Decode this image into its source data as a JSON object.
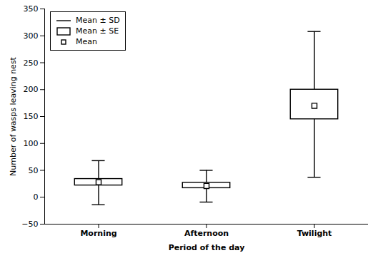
{
  "chart_data": {
    "type": "box",
    "categories": [
      "Morning",
      "Afternoon",
      "Twilight"
    ],
    "means": [
      28,
      21,
      170
    ],
    "se_top": [
      34,
      27,
      200
    ],
    "se_bottom": [
      22,
      17,
      145
    ],
    "sd_top": [
      68,
      50,
      308
    ],
    "sd_bottom": [
      -14,
      -9,
      37
    ],
    "ylim": [
      -50,
      350
    ],
    "yticks": [
      -50,
      0,
      50,
      100,
      150,
      200,
      250,
      300,
      350
    ],
    "xlabel": "Period of the day",
    "ylabel": "Number of wasps leaving nest",
    "legend": "upper left",
    "legend_labels": [
      "Mean ± SD",
      "Mean ± SE",
      "Mean"
    ],
    "color": "#000000",
    "marker": "square"
  }
}
